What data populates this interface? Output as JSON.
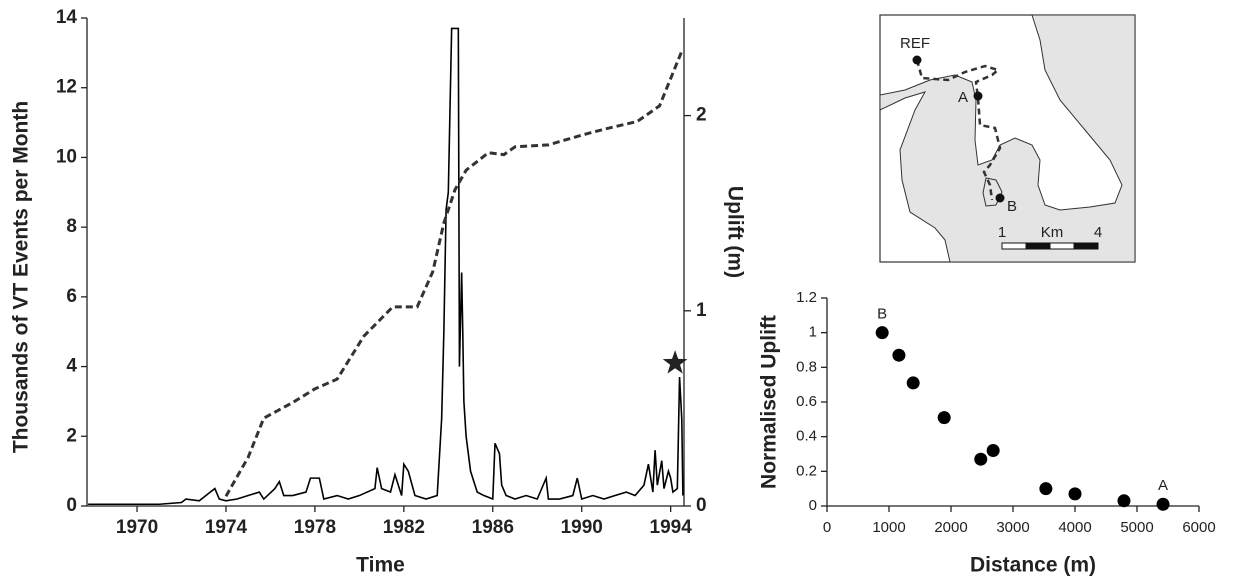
{
  "chart_data": [
    {
      "type": "line",
      "xlabel": "Time",
      "ylabel": "Thousands of VT Events per Month",
      "y2label": "Uplift  (m)",
      "xlim": [
        1967.75,
        1994.6
      ],
      "xticks": [
        1970,
        1974,
        1978,
        1982,
        1986,
        1990,
        1994
      ],
      "ylim": [
        0,
        14
      ],
      "yticks": [
        0,
        2,
        4,
        6,
        8,
        10,
        12,
        14
      ],
      "y2lim": [
        0,
        2.5
      ],
      "y2ticks": [
        0,
        1,
        2
      ],
      "series": [
        {
          "color": "#000000",
          "dashed": false,
          "x": [
            1967.8,
            1969,
            1970,
            1971,
            1972,
            1972.2,
            1972.8,
            1973.3,
            1973.5,
            1973.7,
            1974,
            1974.5,
            1975,
            1975.5,
            1975.7,
            1976.2,
            1976.4,
            1976.6,
            1977,
            1977.6,
            1977.8,
            1978.2,
            1978.4,
            1979,
            1979.5,
            1980,
            1980.7,
            1980.8,
            1981,
            1981.4,
            1981.6,
            1981.9,
            1982,
            1982.2,
            1982.5,
            1983,
            1983.5,
            1983.7,
            1983.8,
            1983.9,
            1984.0,
            1984.15,
            1984.2,
            1984.45,
            1984.5,
            1984.6,
            1984.65,
            1984.7,
            1984.8,
            1985,
            1985.3,
            1985.6,
            1986,
            1986.1,
            1986.3,
            1986.4,
            1986.6,
            1987,
            1987.5,
            1988,
            1988.4,
            1988.5,
            1989,
            1989.6,
            1989.8,
            1990,
            1990.5,
            1991,
            1991.5,
            1992,
            1992.4,
            1992.8,
            1993,
            1993.2,
            1993.3,
            1993.4,
            1993.6,
            1993.7,
            1993.9,
            1994,
            1994.1,
            1994.3,
            1994.4,
            1994.5,
            1994.55
          ],
          "values": [
            0.05,
            0.05,
            0.05,
            0.05,
            0.1,
            0.2,
            0.15,
            0.4,
            0.5,
            0.2,
            0.15,
            0.2,
            0.3,
            0.4,
            0.2,
            0.5,
            0.7,
            0.3,
            0.3,
            0.4,
            0.8,
            0.8,
            0.2,
            0.3,
            0.2,
            0.3,
            0.5,
            1.1,
            0.5,
            0.4,
            0.9,
            0.3,
            1.2,
            1.0,
            0.3,
            0.2,
            0.3,
            2.5,
            5,
            8.5,
            9,
            13.7,
            13.7,
            13.7,
            4,
            6.7,
            5,
            3,
            2,
            1,
            0.4,
            0.3,
            0.2,
            1.8,
            1.5,
            0.6,
            0.3,
            0.2,
            0.3,
            0.2,
            0.8,
            0.2,
            0.2,
            0.3,
            0.8,
            0.2,
            0.3,
            0.2,
            0.3,
            0.4,
            0.3,
            0.6,
            1.2,
            0.4,
            1.6,
            0.6,
            1.3,
            0.5,
            1.0,
            0.8,
            0.4,
            0.5,
            3.7,
            2.5,
            0.3
          ]
        },
        {
          "color": "#333333",
          "dashed": true,
          "axis": "y2",
          "x": [
            1974,
            1975,
            1975.7,
            1977,
            1978,
            1979,
            1980.2,
            1981.5,
            1982.6,
            1983.3,
            1983.8,
            1984.3,
            1984.8,
            1985.8,
            1986.5,
            1987,
            1988.5,
            1990,
            1991,
            1992.5,
            1993.5,
            1994.5
          ],
          "values": [
            0.05,
            0.25,
            0.45,
            0.53,
            0.6,
            0.65,
            0.87,
            1.02,
            1.02,
            1.2,
            1.45,
            1.62,
            1.72,
            1.81,
            1.8,
            1.84,
            1.85,
            1.9,
            1.93,
            1.97,
            2.05,
            2.33
          ]
        }
      ],
      "marker": {
        "x": 1994.2,
        "y": 4.1
      }
    },
    {
      "type": "scatter",
      "xlabel": "Distance  (m)",
      "ylabel": "Normalised Uplift",
      "xlim": [
        0,
        6000
      ],
      "xticks": [
        0,
        1000,
        2000,
        3000,
        4000,
        5000,
        6000
      ],
      "ylim": [
        0,
        1.2
      ],
      "yticks": [
        0,
        0.2,
        0.4,
        0.6,
        0.8,
        1,
        1.2
      ],
      "color": "#000000",
      "x": [
        890,
        1160,
        1390,
        1890,
        2480,
        2680,
        3530,
        4000,
        4790,
        5420
      ],
      "values": [
        1.0,
        0.87,
        0.71,
        0.51,
        0.27,
        0.32,
        0.1,
        0.07,
        0.03,
        0.01
      ],
      "annotations": [
        {
          "text": "B",
          "x": 890,
          "y": 1.0
        },
        {
          "text": "A",
          "x": 5420,
          "y": 0.01
        }
      ]
    }
  ],
  "map": {
    "labels": [
      "REF",
      "A",
      "B",
      "1",
      "Km",
      "4"
    ]
  }
}
